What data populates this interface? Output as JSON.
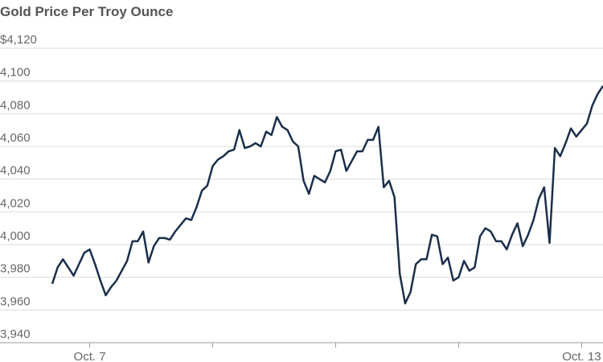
{
  "chart_data": {
    "type": "line",
    "title": "Gold Price Per Troy Ounce",
    "x": [
      0,
      1,
      2,
      3,
      4,
      5,
      6,
      7,
      8,
      9,
      10,
      11,
      12,
      13,
      14,
      15,
      16,
      17,
      18,
      19,
      20,
      21,
      22,
      23,
      24,
      25,
      26,
      27,
      28,
      29,
      30,
      31,
      32,
      33,
      34,
      35,
      36,
      37,
      38,
      39,
      40,
      41,
      42,
      43,
      44,
      45,
      46,
      47,
      48,
      49,
      50,
      51,
      52,
      53,
      54,
      55,
      56,
      57,
      58,
      59,
      60,
      61,
      62,
      63,
      64,
      65,
      66,
      67,
      68,
      69,
      70,
      71,
      72,
      73,
      74,
      75,
      76,
      77,
      78,
      79,
      80,
      81,
      82,
      83,
      84,
      85,
      86,
      87,
      88,
      89,
      90,
      91,
      92,
      93,
      94,
      95,
      96,
      97,
      98,
      99,
      100,
      101,
      102,
      103
    ],
    "series": [
      {
        "name": "Gold",
        "color": "#1b2f4b",
        "values": [
          3976,
          3986,
          3991,
          3986,
          3981,
          3988,
          3995,
          3997,
          3988,
          3978,
          3969,
          3974,
          3978,
          3984,
          3990,
          4002,
          4002,
          4008,
          3989,
          3999,
          4004,
          4004,
          4003,
          4008,
          4012,
          4016,
          4015,
          4023,
          4033,
          4036,
          4048,
          4052,
          4054,
          4057,
          4058,
          4070,
          4059,
          4060,
          4062,
          4060,
          4069,
          4067,
          4078,
          4072,
          4070,
          4063,
          4060,
          4039,
          4031,
          4042,
          4040,
          4038,
          4045,
          4057,
          4058,
          4045,
          4051,
          4057,
          4057,
          4064,
          4064,
          4072,
          4035,
          4039,
          4029,
          3982,
          3964,
          3971,
          3988,
          3991,
          3991,
          4006,
          4005,
          3988,
          3992,
          3978,
          3980,
          3990,
          3984,
          3986,
          4005,
          4010,
          4008,
          4002,
          4002,
          3997,
          4006,
          4013,
          3999,
          4006,
          4015,
          4028,
          4035,
          4001,
          4059,
          4054,
          4062,
          4071,
          4066,
          4070,
          4074,
          4085,
          4092,
          4097
        ]
      }
    ],
    "xlim": [
      0,
      103
    ],
    "xticks": [
      {
        "value": 7,
        "label": "Oct. 7"
      },
      {
        "value": 30,
        "label": null
      },
      {
        "value": 53,
        "label": null
      },
      {
        "value": 76,
        "label": null
      },
      {
        "value": 99,
        "label": "Oct. 13"
      }
    ],
    "ylim": [
      3940,
      4120
    ],
    "yticks": [
      {
        "value": 3940,
        "label": "3,940"
      },
      {
        "value": 3960,
        "label": "3,960"
      },
      {
        "value": 3980,
        "label": "3,980"
      },
      {
        "value": 4000,
        "label": "4,000"
      },
      {
        "value": 4020,
        "label": "4,020"
      },
      {
        "value": 4040,
        "label": "4,040"
      },
      {
        "value": 4060,
        "label": "4,060"
      },
      {
        "value": 4080,
        "label": "4,080"
      },
      {
        "value": 4100,
        "label": "4,100"
      },
      {
        "value": 4120,
        "label": "$4,120"
      }
    ],
    "grid": true
  }
}
